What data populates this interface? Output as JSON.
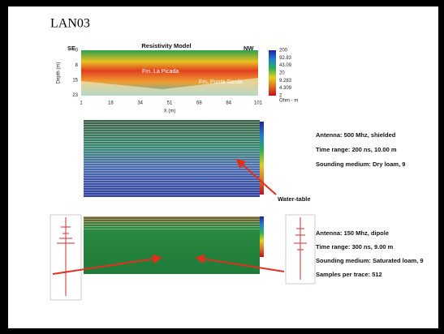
{
  "title": "LAN03",
  "resistivity_model": {
    "title": "Resistivity Model",
    "left_label": "SE",
    "right_label": "NW",
    "y_axis_label": "Depth (m)",
    "x_axis_label": "X (m)",
    "y_ticks": [
      "0",
      "8",
      "15",
      "23"
    ],
    "x_ticks": [
      "1",
      "18",
      "34",
      "51",
      "68",
      "84",
      "101"
    ],
    "colorbar_ticks": [
      "200",
      "92.83",
      "43.09",
      "20",
      "9.283",
      "4.309",
      "2"
    ],
    "colorbar_unit": "Ohm - m",
    "annotations": [
      "Fm. La Picada",
      "Fm. Punta Gorda"
    ]
  },
  "radargram_1": {
    "info": [
      "Antenna: 500 Mhz, shielded",
      "Time range: 200 ns, 10.00 m",
      "Sounding medium: Dry loam, 9"
    ],
    "annotation": "Water-table"
  },
  "radargram_2": {
    "info": [
      "Antenna: 150 Mhz, dipole",
      "Time range: 300 ns, 9.00 m",
      "Sounding medium: Saturated loam, 9",
      "Samples per trace: 512"
    ]
  }
}
